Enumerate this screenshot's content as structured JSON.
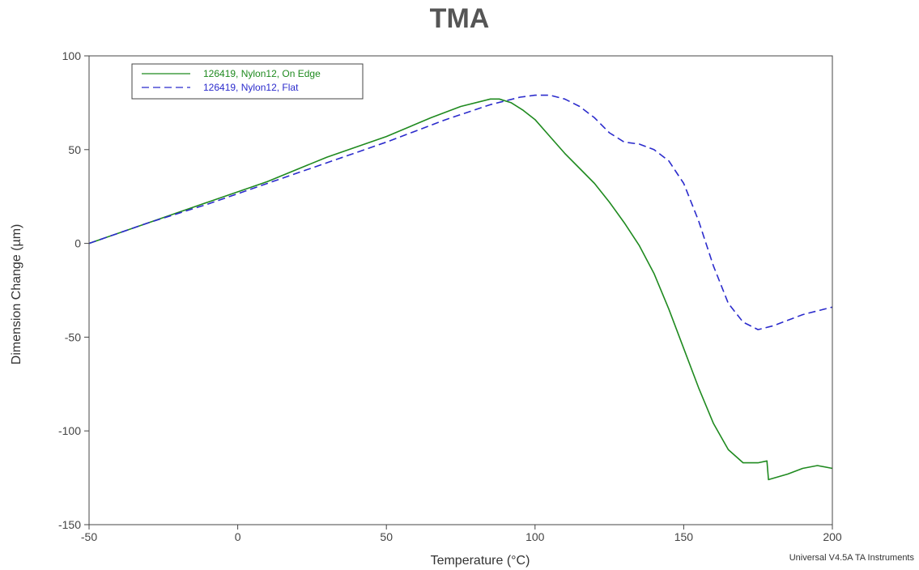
{
  "chart_data": {
    "type": "line",
    "title": "TMA",
    "xlabel": "Temperature (°C)",
    "ylabel": "Dimension Change (µm)",
    "xlim": [
      -50,
      200
    ],
    "ylim": [
      -150,
      100
    ],
    "xticks": [
      -50,
      0,
      50,
      100,
      150,
      200
    ],
    "yticks": [
      100,
      50,
      0,
      -50,
      -100,
      -150
    ],
    "legend_position": "top-left",
    "grid": false,
    "series": [
      {
        "name": "126419, Nylon12, On Edge",
        "color": "#1f8a1f",
        "dash": "solid",
        "points": [
          [
            -50,
            0
          ],
          [
            -30,
            11
          ],
          [
            -10,
            22
          ],
          [
            10,
            33
          ],
          [
            30,
            46
          ],
          [
            50,
            57
          ],
          [
            65,
            67
          ],
          [
            75,
            73
          ],
          [
            85,
            77
          ],
          [
            88,
            77
          ],
          [
            92,
            75
          ],
          [
            96,
            71
          ],
          [
            100,
            66
          ],
          [
            105,
            57
          ],
          [
            110,
            48
          ],
          [
            115,
            40
          ],
          [
            120,
            32
          ],
          [
            125,
            22
          ],
          [
            130,
            11
          ],
          [
            135,
            -1
          ],
          [
            140,
            -16
          ],
          [
            145,
            -35
          ],
          [
            150,
            -56
          ],
          [
            155,
            -77
          ],
          [
            160,
            -96
          ],
          [
            165,
            -110
          ],
          [
            170,
            -117
          ],
          [
            175,
            -117
          ],
          [
            178,
            -116
          ],
          [
            178.5,
            -126
          ],
          [
            185,
            -123
          ],
          [
            190,
            -120
          ],
          [
            195,
            -118.5
          ],
          [
            200,
            -120
          ]
        ]
      },
      {
        "name": "126419, Nylon12, Flat",
        "color": "#2b2bcc",
        "dash": "dashed",
        "points": [
          [
            -50,
            0
          ],
          [
            -30,
            11
          ],
          [
            -10,
            21
          ],
          [
            10,
            32
          ],
          [
            30,
            43
          ],
          [
            50,
            54
          ],
          [
            70,
            66
          ],
          [
            85,
            74
          ],
          [
            95,
            78
          ],
          [
            100,
            79
          ],
          [
            105,
            79
          ],
          [
            110,
            77
          ],
          [
            115,
            73
          ],
          [
            120,
            67
          ],
          [
            125,
            59
          ],
          [
            130,
            54
          ],
          [
            135,
            53
          ],
          [
            140,
            50
          ],
          [
            145,
            44
          ],
          [
            150,
            32
          ],
          [
            155,
            12
          ],
          [
            160,
            -12
          ],
          [
            165,
            -32
          ],
          [
            170,
            -42
          ],
          [
            175,
            -46
          ],
          [
            180,
            -44
          ],
          [
            190,
            -38
          ],
          [
            200,
            -34
          ]
        ]
      }
    ]
  },
  "footer": "Universal V4.5A TA Instruments"
}
